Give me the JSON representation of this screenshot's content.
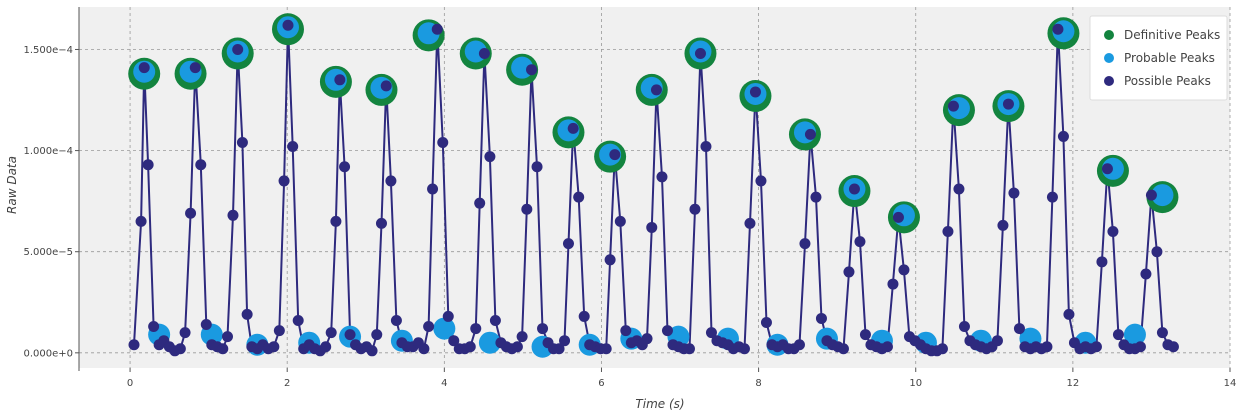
{
  "chart_data": {
    "type": "scatter",
    "xlabel": "Time (s)",
    "ylabel": "Raw Data",
    "xlim": [
      -0.65,
      14
    ],
    "ylim": [
      -7.5e-06,
      0.000171
    ],
    "x_ticks": [
      0,
      2,
      4,
      6,
      8,
      10,
      12,
      14
    ],
    "x_tick_labels": [
      "0",
      "2",
      "4",
      "6",
      "8",
      "10",
      "12",
      "14"
    ],
    "y_ticks": [
      0,
      5e-05,
      0.0001,
      0.00015
    ],
    "y_tick_labels": [
      "0.000e+0",
      "5.000e−5",
      "1.000e−4",
      "1.500e−4"
    ],
    "grid": true,
    "legend": {
      "placement": "top-right",
      "entries": [
        {
          "name": "Definitive Peaks",
          "color": "#13843f"
        },
        {
          "name": "Probable Peaks",
          "color": "#1a9ae0"
        },
        {
          "name": "Possible Peaks",
          "color": "#2e2a7e"
        }
      ]
    },
    "colors": {
      "line": "#2e2a7e",
      "definitive": "#13843f",
      "probable": "#1a9ae0",
      "possible": "#2e2a7e",
      "plot_background": "#f0f0f0",
      "grid": "#999999"
    },
    "signal": {
      "x": [
        0.05,
        0.14,
        0.18,
        0.23,
        0.3,
        0.37,
        0.43,
        0.5,
        0.57,
        0.64,
        0.7,
        0.77,
        0.83,
        0.9,
        0.97,
        1.04,
        1.11,
        1.18,
        1.24,
        1.31,
        1.37,
        1.43,
        1.49,
        1.55,
        1.62,
        1.69,
        1.76,
        1.83,
        1.9,
        1.96,
        2.01,
        2.07,
        2.14,
        2.21,
        2.28,
        2.35,
        2.42,
        2.49,
        2.56,
        2.62,
        2.67,
        2.73,
        2.8,
        2.87,
        2.94,
        3.01,
        3.08,
        3.14,
        3.2,
        3.26,
        3.32,
        3.39,
        3.46,
        3.53,
        3.6,
        3.67,
        3.74,
        3.8,
        3.85,
        3.91,
        3.98,
        4.05,
        4.12,
        4.19,
        4.26,
        4.33,
        4.4,
        4.45,
        4.51,
        4.58,
        4.65,
        4.72,
        4.79,
        4.86,
        4.93,
        4.99,
        5.05,
        5.11,
        5.18,
        5.25,
        5.32,
        5.39,
        5.46,
        5.53,
        5.58,
        5.64,
        5.71,
        5.78,
        5.85,
        5.92,
        5.99,
        6.06,
        6.11,
        6.17,
        6.24,
        6.31,
        6.38,
        6.45,
        6.52,
        6.58,
        6.64,
        6.7,
        6.77,
        6.84,
        6.91,
        6.98,
        7.05,
        7.12,
        7.19,
        7.26,
        7.33,
        7.4,
        7.47,
        7.54,
        7.61,
        7.68,
        7.75,
        7.82,
        7.89,
        7.96,
        8.03,
        8.1,
        8.17,
        8.24,
        8.31,
        8.38,
        8.45,
        8.52,
        8.59,
        8.66,
        8.73,
        8.8,
        8.87,
        8.94,
        9.01,
        9.08,
        9.15,
        9.22,
        9.29,
        9.36,
        9.43,
        9.5,
        9.57,
        9.64,
        9.71,
        9.78,
        9.85,
        9.92,
        9.99,
        10.06,
        10.13,
        10.2,
        10.27,
        10.34,
        10.41,
        10.48,
        10.55,
        10.62,
        10.69,
        10.76,
        10.83,
        10.9,
        10.97,
        11.04,
        11.11,
        11.18,
        11.25,
        11.32,
        11.39,
        11.46,
        11.53,
        11.6,
        11.67,
        11.74,
        11.81,
        11.88,
        11.95,
        12.02,
        12.09,
        12.16,
        12.23,
        12.3,
        12.37,
        12.44,
        12.51,
        12.58,
        12.65,
        12.72,
        12.79,
        12.86,
        12.93,
        13.0,
        13.07,
        13.14,
        13.21,
        13.28
      ],
      "y": [
        4e-06,
        6.5e-05,
        0.000141,
        9.3e-05,
        1.3e-05,
        4e-06,
        6e-06,
        3e-06,
        1e-06,
        2e-06,
        1e-05,
        6.9e-05,
        0.000141,
        9.3e-05,
        1.4e-05,
        4e-06,
        3e-06,
        2e-06,
        8e-06,
        6.8e-05,
        0.00015,
        0.000104,
        1.9e-05,
        3e-06,
        2e-06,
        4e-06,
        2e-06,
        3e-06,
        1.1e-05,
        8.5e-05,
        0.000162,
        0.000102,
        1.6e-05,
        2e-06,
        4e-06,
        2e-06,
        1e-06,
        3e-06,
        1e-05,
        6.5e-05,
        0.000135,
        9.2e-05,
        9e-06,
        4e-06,
        2e-06,
        3e-06,
        1e-06,
        9e-06,
        6.4e-05,
        0.000132,
        8.5e-05,
        1.6e-05,
        5e-06,
        3e-06,
        3e-06,
        5e-06,
        2e-06,
        1.3e-05,
        8.1e-05,
        0.00016,
        0.000104,
        1.8e-05,
        6e-06,
        2e-06,
        2e-06,
        3e-06,
        1.2e-05,
        7.4e-05,
        0.000148,
        9.7e-05,
        1.6e-05,
        5e-06,
        3e-06,
        2e-06,
        3e-06,
        8e-06,
        7.1e-05,
        0.00014,
        9.2e-05,
        1.2e-05,
        5e-06,
        2e-06,
        2e-06,
        6e-06,
        5.4e-05,
        0.000111,
        7.7e-05,
        1.8e-05,
        4e-06,
        3e-06,
        2e-06,
        2e-06,
        4.6e-05,
        9.8e-05,
        6.5e-05,
        1.1e-05,
        5e-06,
        6e-06,
        4e-06,
        7e-06,
        6.2e-05,
        0.00013,
        8.7e-05,
        1.1e-05,
        4e-06,
        3e-06,
        2e-06,
        2e-06,
        7.1e-05,
        0.000148,
        0.000102,
        1e-05,
        6e-06,
        5e-06,
        4e-06,
        2e-06,
        3e-06,
        2e-06,
        6.4e-05,
        0.000129,
        8.5e-05,
        1.5e-05,
        4e-06,
        3e-06,
        4e-06,
        2e-06,
        2e-06,
        4e-06,
        5.4e-05,
        0.000108,
        7.7e-05,
        1.7e-05,
        6e-06,
        4e-06,
        3e-06,
        2e-06,
        4e-05,
        8.1e-05,
        5.5e-05,
        9e-06,
        4e-06,
        3e-06,
        2e-06,
        3e-06,
        3.4e-05,
        6.7e-05,
        4.1e-05,
        8e-06,
        6e-06,
        4e-06,
        2e-06,
        1e-06,
        1e-06,
        2e-06,
        6e-05,
        0.000122,
        8.1e-05,
        1.3e-05,
        6e-06,
        4e-06,
        3e-06,
        2e-06,
        3e-06,
        6e-06,
        6.3e-05,
        0.000123,
        7.9e-05,
        1.2e-05,
        3e-06,
        2e-06,
        3e-06,
        2e-06,
        3e-06,
        7.7e-05,
        0.00016,
        0.000107,
        1.9e-05,
        5e-06,
        2e-06,
        3e-06,
        2e-06,
        3e-06,
        4.5e-05,
        9.1e-05,
        6e-05,
        9e-06,
        4e-06,
        2e-06,
        2e-06,
        3e-06,
        3.9e-05,
        7.8e-05,
        5e-05,
        1e-05,
        4e-06,
        3e-06
      ]
    },
    "definitive_peaks": {
      "x": [
        0.18,
        0.77,
        1.37,
        2.01,
        2.62,
        3.2,
        3.8,
        4.4,
        4.99,
        5.58,
        6.11,
        6.64,
        7.26,
        7.96,
        8.59,
        9.22,
        9.85,
        10.55,
        11.18,
        11.88,
        12.51,
        13.14
      ],
      "y": [
        0.000138,
        0.000138,
        0.000148,
        0.00016,
        0.000134,
        0.00013,
        0.000157,
        0.000148,
        0.00014,
        0.000109,
        9.7e-05,
        0.00013,
        0.000148,
        0.000127,
        0.000108,
        8e-05,
        6.7e-05,
        0.00012,
        0.000122,
        0.000158,
        9e-05,
        7.7e-05
      ]
    },
    "probable_peaks": {
      "x": [
        0.18,
        0.77,
        1.37,
        2.01,
        2.62,
        3.2,
        3.8,
        4.4,
        4.99,
        5.58,
        6.11,
        6.64,
        7.26,
        7.96,
        8.59,
        9.22,
        9.85,
        10.55,
        11.18,
        11.88,
        12.51,
        13.14,
        0.37,
        1.04,
        1.62,
        2.28,
        2.8,
        3.46,
        4.0,
        4.58,
        5.25,
        5.85,
        6.38,
        6.98,
        7.61,
        8.24,
        8.87,
        9.57,
        10.13,
        10.83,
        11.46,
        12.16,
        12.79
      ],
      "y": [
        0.000139,
        0.000139,
        0.000149,
        0.000161,
        0.000135,
        0.000131,
        0.000158,
        0.000149,
        0.000141,
        0.00011,
        9.8e-05,
        0.000131,
        0.000149,
        0.000128,
        0.000109,
        8.1e-05,
        6.8e-05,
        0.000121,
        0.000123,
        0.000159,
        9.1e-05,
        7.8e-05,
        9e-06,
        9e-06,
        4e-06,
        5e-06,
        8e-06,
        6e-06,
        1.2e-05,
        5e-06,
        3e-06,
        4e-06,
        7e-06,
        8e-06,
        7e-06,
        4e-06,
        7e-06,
        6e-06,
        5e-06,
        6e-06,
        7e-06,
        5e-06,
        9e-06
      ]
    }
  }
}
